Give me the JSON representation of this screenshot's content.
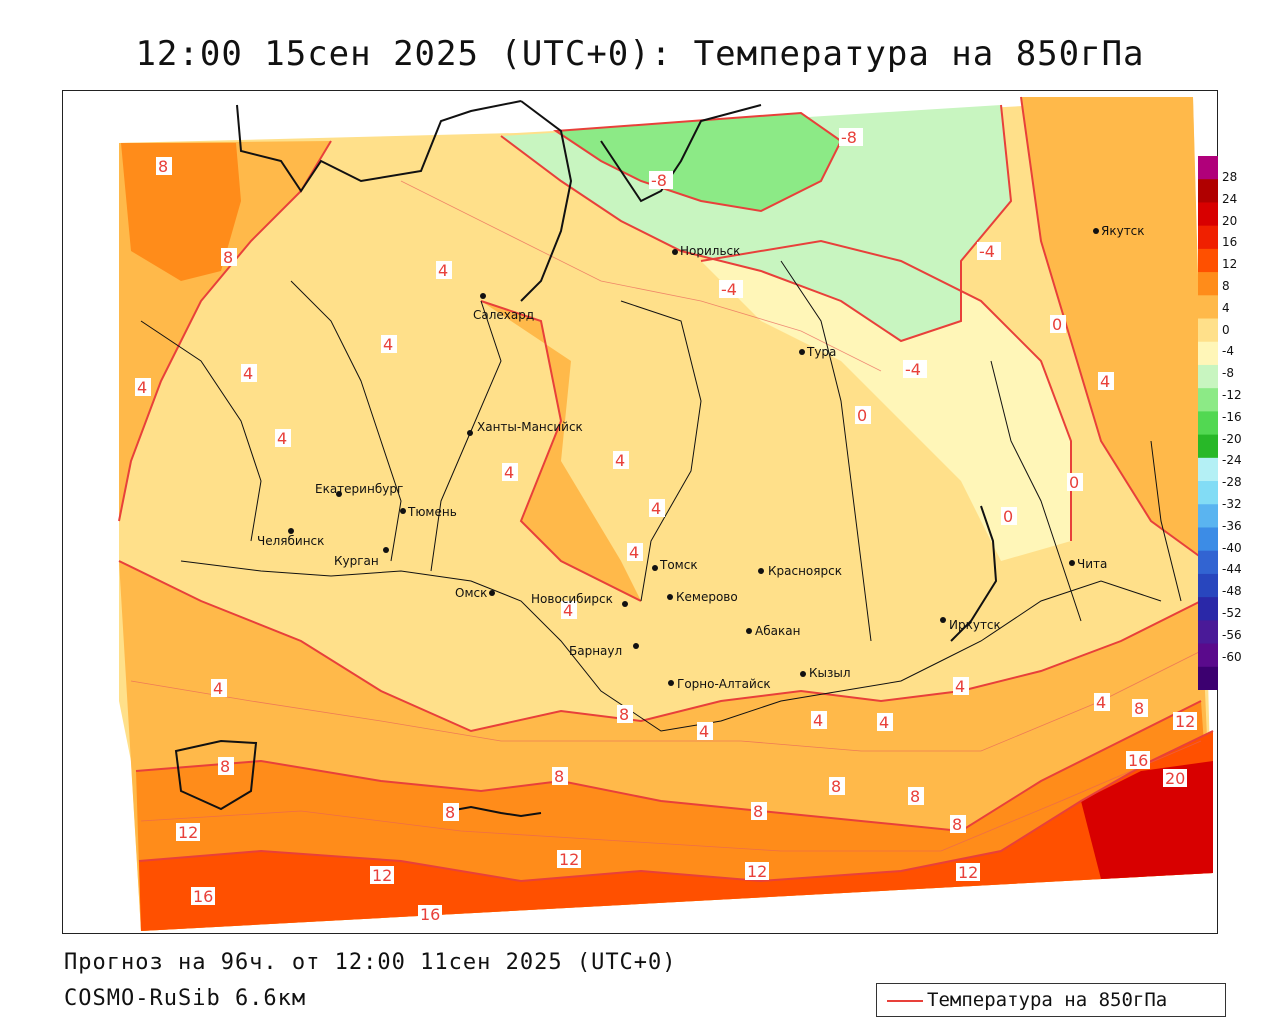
{
  "title": "12:00 15сен 2025 (UTC+0): Температура на 850гПа",
  "footer": {
    "forecast": "Прогноз на 96ч. от 12:00 11сен 2025 (UTC+0)",
    "model": "COSMO-RuSib 6.6км"
  },
  "legend": {
    "label": "Температура на 850гПа",
    "line_color": "#e8403a"
  },
  "colorbar": {
    "ticks": [
      "28",
      "24",
      "20",
      "16",
      "12",
      "8",
      "4",
      "0",
      "-4",
      "-8",
      "-12",
      "-16",
      "-20",
      "-24",
      "-28",
      "-32",
      "-36",
      "-40",
      "-44",
      "-48",
      "-52",
      "-56",
      "-60"
    ],
    "colors": [
      "#b0007a",
      "#b00000",
      "#d80000",
      "#f02000",
      "#ff5000",
      "#ff8c1a",
      "#ffb94a",
      "#ffe08a",
      "#fff6b8",
      "#c8f5c0",
      "#8cea86",
      "#52d852",
      "#28b828",
      "#b4f0f5",
      "#82dcf5",
      "#5ab4f0",
      "#3c8ce6",
      "#3264d2",
      "#2846be",
      "#2a28a8",
      "#4a1a98",
      "#5a0a8c",
      "#3c0070"
    ]
  },
  "cities": [
    {
      "name": "Якутск"
    },
    {
      "name": "Норильск"
    },
    {
      "name": "Салехард"
    },
    {
      "name": "Тура"
    },
    {
      "name": "Ханты-Мансийск"
    },
    {
      "name": "Екатеринбург"
    },
    {
      "name": "Тюмень"
    },
    {
      "name": "Челябинск"
    },
    {
      "name": "Курган"
    },
    {
      "name": "Омск"
    },
    {
      "name": "Томск"
    },
    {
      "name": "Красноярск"
    },
    {
      "name": "Новосибирск"
    },
    {
      "name": "Кемерово"
    },
    {
      "name": "Абакан"
    },
    {
      "name": "Иркутск"
    },
    {
      "name": "Барнаул"
    },
    {
      "name": "Кызыл"
    },
    {
      "name": "Горно-Алтайск"
    },
    {
      "name": "Чита"
    }
  ],
  "isotherm_labels": [
    "8",
    "-8",
    "-8",
    "8",
    "4",
    "-4",
    "-4",
    "0",
    "4",
    "4",
    "-4",
    "0",
    "4",
    "4",
    "4",
    "4",
    "0",
    "4",
    "0",
    "4",
    "4",
    "4",
    "4",
    "4",
    "8",
    "4",
    "4",
    "8",
    "8",
    "4",
    "4",
    "8",
    "12",
    "16",
    "20",
    "8",
    "8",
    "8",
    "12",
    "12",
    "12",
    "16",
    "16",
    "8",
    "12",
    "8",
    "12"
  ]
}
